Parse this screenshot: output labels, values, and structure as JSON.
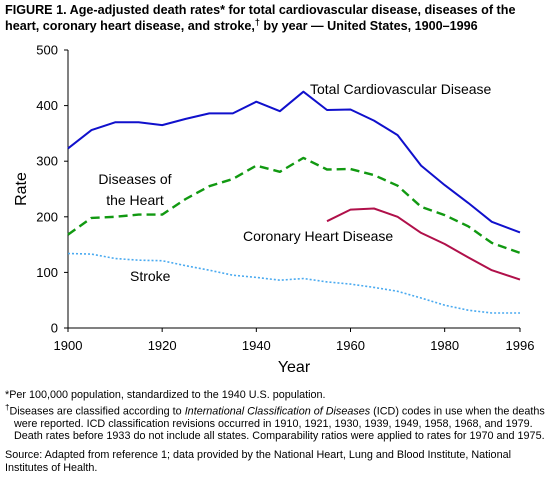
{
  "figure": {
    "title_prefix": "FIGURE 1. Age-adjusted death rates* for total cardiovascular disease, diseases of the heart, coronary heart disease, and stroke,",
    "title_dagger": "†",
    "title_suffix": " by year — United States, 1900–1996"
  },
  "footnotes": {
    "asterisk": "*Per 100,000 population, standardized to the 1940 U.S. population.",
    "dagger_mark": "†",
    "dagger_before": "Diseases are classified according to ",
    "dagger_italic": "International Classification of Diseases",
    "dagger_after": " (ICD) codes in use when the deaths were reported. ICD classification revisions occurred in 1910, 1921, 1930, 1939, 1949, 1958, 1968, and 1979. Death rates before 1933 do not include all states. Comparability ratios were applied to rates for 1970 and 1975.",
    "source": "Source: Adapted from reference 1; data provided by the National Heart, Lung and Blood Institute, National Institutes of Health."
  },
  "chart_data": {
    "type": "line",
    "xlabel": "Year",
    "ylabel": "Rate",
    "xlim": [
      1900,
      1996
    ],
    "ylim": [
      0,
      500
    ],
    "x_ticks": [
      1900,
      1920,
      1940,
      1960,
      1980,
      1996
    ],
    "y_ticks": [
      0,
      100,
      200,
      300,
      400,
      500
    ],
    "grid": false,
    "series": [
      {
        "name": "Total Cardiovascular Disease",
        "color": "#1010cc",
        "style": "solid",
        "points": [
          [
            1900,
            323
          ],
          [
            1905,
            356
          ],
          [
            1910,
            370
          ],
          [
            1915,
            370
          ],
          [
            1920,
            365
          ],
          [
            1925,
            376
          ],
          [
            1930,
            386
          ],
          [
            1935,
            386
          ],
          [
            1940,
            407
          ],
          [
            1945,
            390
          ],
          [
            1950,
            425
          ],
          [
            1955,
            392
          ],
          [
            1960,
            393
          ],
          [
            1965,
            373
          ],
          [
            1970,
            347
          ],
          [
            1975,
            292
          ],
          [
            1980,
            257
          ],
          [
            1985,
            225
          ],
          [
            1990,
            191
          ],
          [
            1996,
            172
          ]
        ]
      },
      {
        "name": "Diseases of the Heart",
        "color": "#119911",
        "style": "dashed",
        "points": [
          [
            1900,
            168
          ],
          [
            1905,
            198
          ],
          [
            1910,
            200
          ],
          [
            1915,
            204
          ],
          [
            1920,
            204
          ],
          [
            1925,
            232
          ],
          [
            1930,
            255
          ],
          [
            1935,
            268
          ],
          [
            1940,
            292
          ],
          [
            1945,
            281
          ],
          [
            1950,
            306
          ],
          [
            1955,
            285
          ],
          [
            1960,
            286
          ],
          [
            1965,
            275
          ],
          [
            1970,
            256
          ],
          [
            1975,
            218
          ],
          [
            1980,
            203
          ],
          [
            1985,
            183
          ],
          [
            1990,
            153
          ],
          [
            1996,
            135
          ]
        ]
      },
      {
        "name": "Coronary Heart Disease",
        "color": "#b0104a",
        "style": "solid",
        "points": [
          [
            1955,
            192
          ],
          [
            1960,
            213
          ],
          [
            1965,
            215
          ],
          [
            1970,
            200
          ],
          [
            1975,
            171
          ],
          [
            1980,
            151
          ],
          [
            1985,
            127
          ],
          [
            1990,
            104
          ],
          [
            1996,
            87
          ]
        ]
      },
      {
        "name": "Stroke",
        "color": "#4aaaf0",
        "style": "dotted",
        "points": [
          [
            1900,
            134
          ],
          [
            1905,
            133
          ],
          [
            1910,
            125
          ],
          [
            1915,
            122
          ],
          [
            1920,
            121
          ],
          [
            1925,
            112
          ],
          [
            1930,
            104
          ],
          [
            1935,
            95
          ],
          [
            1940,
            91
          ],
          [
            1945,
            86
          ],
          [
            1950,
            89
          ],
          [
            1955,
            83
          ],
          [
            1960,
            79
          ],
          [
            1965,
            73
          ],
          [
            1970,
            66
          ],
          [
            1975,
            54
          ],
          [
            1980,
            41
          ],
          [
            1985,
            32
          ],
          [
            1990,
            27
          ],
          [
            1996,
            27
          ]
        ]
      }
    ],
    "labels": [
      {
        "text": "Total Cardiovascular Disease",
        "series": 0
      },
      {
        "text": "Diseases of",
        "series": 1
      },
      {
        "text": "the Heart",
        "series": 1
      },
      {
        "text": "Coronary Heart Disease",
        "series": 2
      },
      {
        "text": "Stroke",
        "series": 3
      }
    ]
  }
}
